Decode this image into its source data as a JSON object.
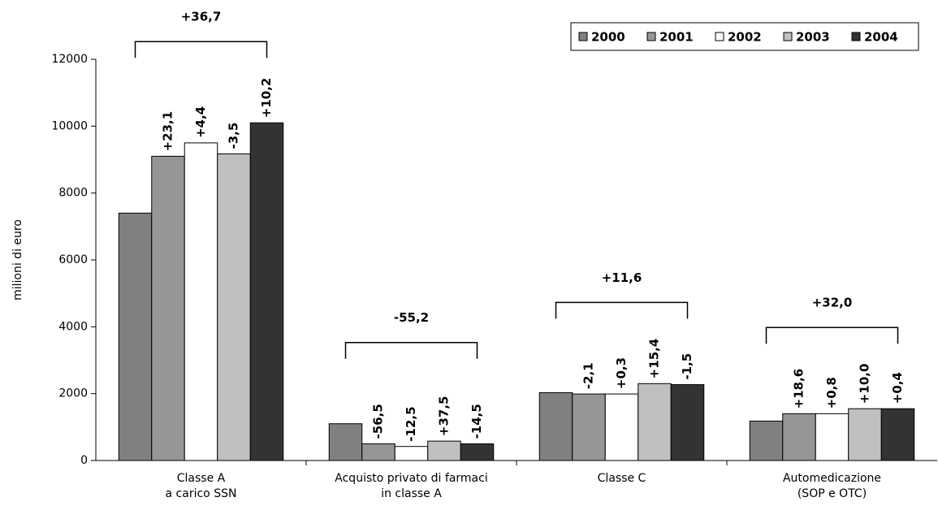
{
  "chart_data": {
    "type": "bar",
    "y_label": "milioni di euro",
    "categories": [
      [
        "Classe A",
        "a carico SSN"
      ],
      [
        "Acquisto privato di farmaci",
        "in classe A"
      ],
      [
        "Classe C"
      ],
      [
        "Automedicazione",
        "(SOP e OTC)"
      ]
    ],
    "series": [
      {
        "name": "2000",
        "color": "#808080",
        "values": [
          7400,
          1100,
          2030,
          1180
        ]
      },
      {
        "name": "2001",
        "color": "#969696",
        "values": [
          9100,
          500,
          1990,
          1400
        ]
      },
      {
        "name": "2002",
        "color": "#ffffff",
        "values": [
          9500,
          420,
          1990,
          1400
        ]
      },
      {
        "name": "2003",
        "color": "#c0c0c0",
        "values": [
          9170,
          580,
          2300,
          1550
        ]
      },
      {
        "name": "2004",
        "color": "#333333",
        "values": [
          10100,
          500,
          2270,
          1550
        ]
      }
    ],
    "annotations": [
      {
        "total": "+36,7",
        "changes": [
          "+23,1",
          "+4,4",
          "-3,5",
          "+10,2"
        ]
      },
      {
        "total": "-55,2",
        "changes": [
          "-56,5",
          "-12,5",
          "+37,5",
          "-14,5"
        ]
      },
      {
        "total": "+11,6",
        "changes": [
          "-2,1",
          "+0,3",
          "+15,4",
          "-1,5"
        ]
      },
      {
        "total": "+32,0",
        "changes": [
          "+18,6",
          "+0,8",
          "+10,0",
          "+0,4"
        ]
      }
    ],
    "ylim": [
      0,
      12000
    ],
    "yticks": [
      0,
      2000,
      4000,
      6000,
      8000,
      10000,
      12000
    ],
    "legend": "top-right"
  }
}
